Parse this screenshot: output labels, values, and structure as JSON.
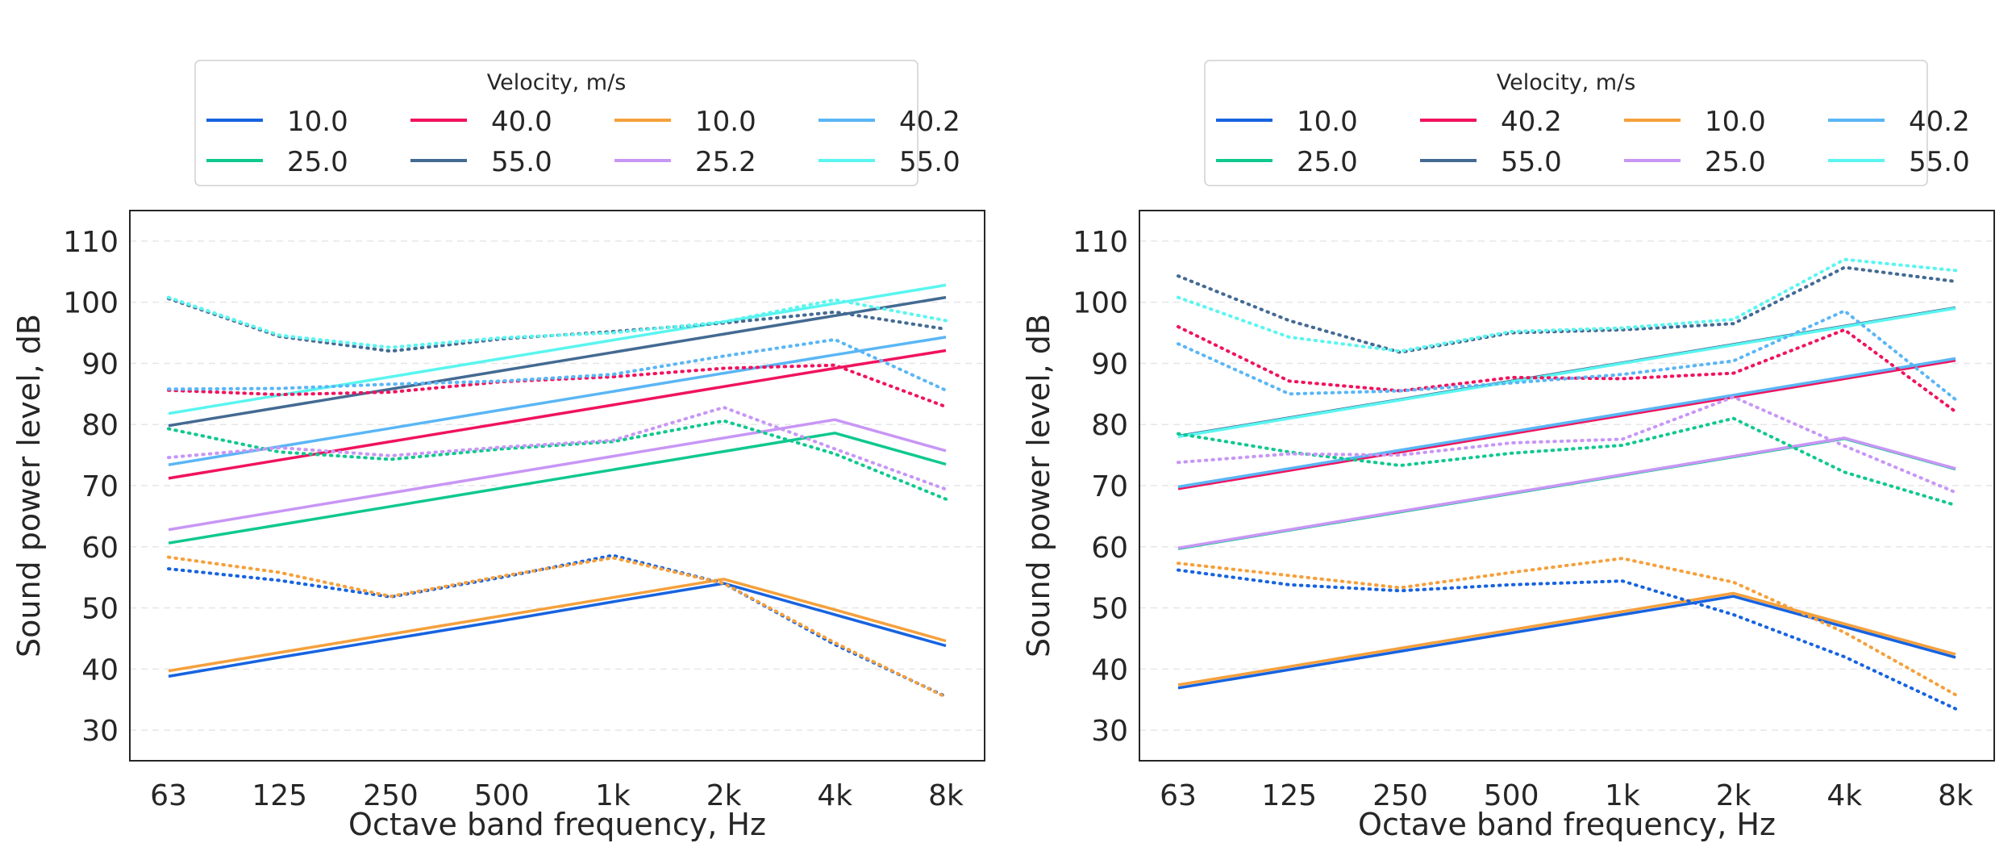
{
  "chart_data": [
    {
      "type": "line",
      "xlabel": "Octave band frequency, Hz",
      "ylabel": "Sound power level, dB",
      "x": [
        "63",
        "125",
        "250",
        "500",
        "1k",
        "2k",
        "4k",
        "8k"
      ],
      "y_ticks": [
        30,
        40,
        50,
        60,
        70,
        80,
        90,
        100,
        110
      ],
      "ylim": [
        25,
        115
      ],
      "grid": "horizontal dashed",
      "legend": {
        "title": "Velocity, m/s",
        "placement": "top-center, outside",
        "columns": 4,
        "entries": [
          "10.0",
          "25.0",
          "40.0",
          "55.0",
          "10.0",
          "25.2",
          "40.2",
          "55.0"
        ]
      },
      "series": [
        {
          "name": "10.0",
          "color": "#1763e0",
          "style": "solid",
          "values": [
            38.8,
            41.9,
            44.9,
            47.9,
            51.0,
            54.0,
            48.9,
            43.8
          ]
        },
        {
          "name": "25.0",
          "color": "#10c88f",
          "style": "solid",
          "values": [
            60.6,
            63.6,
            66.6,
            69.6,
            72.6,
            75.6,
            78.6,
            73.5
          ]
        },
        {
          "name": "40.0",
          "color": "#f0135f",
          "style": "solid",
          "values": [
            71.2,
            74.2,
            77.2,
            80.2,
            83.2,
            86.2,
            89.2,
            92.1
          ]
        },
        {
          "name": "55.0",
          "color": "#436a92",
          "style": "solid",
          "values": [
            79.8,
            82.8,
            85.8,
            88.8,
            91.8,
            94.8,
            97.8,
            100.8
          ]
        },
        {
          "name": "10.0",
          "color": "#f5a03c",
          "style": "solid",
          "values": [
            39.7,
            42.7,
            45.7,
            48.7,
            51.7,
            54.7,
            49.7,
            44.6
          ]
        },
        {
          "name": "25.2",
          "color": "#c896f5",
          "style": "solid",
          "values": [
            62.8,
            65.8,
            68.8,
            71.8,
            74.8,
            77.8,
            80.8,
            75.7
          ]
        },
        {
          "name": "40.2",
          "color": "#5ab6f5",
          "style": "solid",
          "values": [
            73.4,
            76.4,
            79.4,
            82.4,
            85.4,
            88.4,
            91.4,
            94.3
          ]
        },
        {
          "name": "55.0",
          "color": "#5af5f0",
          "style": "solid",
          "values": [
            81.8,
            84.8,
            87.8,
            90.8,
            93.8,
            96.8,
            99.8,
            102.8
          ]
        },
        {
          "color": "#1763e0",
          "style": "dotted",
          "values": [
            56.4,
            54.5,
            51.8,
            55.0,
            58.6,
            54.0,
            44.0,
            35.5
          ]
        },
        {
          "color": "#10c88f",
          "style": "dotted",
          "values": [
            79.3,
            75.5,
            74.3,
            76.0,
            77.2,
            80.6,
            75.2,
            67.8
          ]
        },
        {
          "color": "#f0135f",
          "style": "dotted",
          "values": [
            85.6,
            84.9,
            85.3,
            87.0,
            87.8,
            89.2,
            89.7,
            82.9
          ]
        },
        {
          "color": "#436a92",
          "style": "dotted",
          "values": [
            100.6,
            94.4,
            92.0,
            94.0,
            95.2,
            96.6,
            98.4,
            95.6
          ]
        },
        {
          "color": "#f5a03c",
          "style": "dotted",
          "values": [
            58.3,
            55.8,
            51.9,
            55.2,
            58.2,
            54.0,
            44.3,
            35.4
          ]
        },
        {
          "color": "#c896f5",
          "style": "dotted",
          "values": [
            74.6,
            76.2,
            74.9,
            76.3,
            77.4,
            82.8,
            76.0,
            69.4
          ]
        },
        {
          "color": "#5ab6f5",
          "style": "dotted",
          "values": [
            85.8,
            85.9,
            86.6,
            87.1,
            88.2,
            91.2,
            93.9,
            85.6
          ]
        },
        {
          "color": "#5af5f0",
          "style": "dotted",
          "values": [
            100.8,
            94.6,
            92.6,
            94.2,
            95.0,
            96.8,
            100.4,
            97.0
          ]
        }
      ]
    },
    {
      "type": "line",
      "xlabel": "Octave band frequency, Hz",
      "ylabel": "Sound power level, dB",
      "x": [
        "63",
        "125",
        "250",
        "500",
        "1k",
        "2k",
        "4k",
        "8k"
      ],
      "y_ticks": [
        30,
        40,
        50,
        60,
        70,
        80,
        90,
        100,
        110
      ],
      "ylim": [
        25,
        115
      ],
      "grid": "horizontal dashed",
      "legend": {
        "title": "Velocity, m/s",
        "placement": "top-center, outside",
        "columns": 4,
        "entries": [
          "10.0",
          "25.0",
          "40.2",
          "55.0",
          "10.0",
          "25.0",
          "40.2",
          "55.0"
        ]
      },
      "series": [
        {
          "name": "10.0",
          "color": "#1763e0",
          "style": "solid",
          "values": [
            36.9,
            39.9,
            42.9,
            45.9,
            48.9,
            51.9,
            46.9,
            41.9
          ]
        },
        {
          "name": "25.0",
          "color": "#10c88f",
          "style": "solid",
          "values": [
            59.7,
            62.7,
            65.7,
            68.7,
            71.7,
            74.7,
            77.7,
            72.7
          ]
        },
        {
          "name": "40.2",
          "color": "#f0135f",
          "style": "solid",
          "values": [
            69.5,
            72.5,
            75.5,
            78.5,
            81.5,
            84.5,
            87.5,
            90.5
          ]
        },
        {
          "name": "55.0",
          "color": "#436a92",
          "style": "solid",
          "values": [
            78.1,
            81.1,
            84.1,
            87.1,
            90.1,
            93.1,
            96.1,
            99.1
          ]
        },
        {
          "name": "10.0",
          "color": "#f5a03c",
          "style": "solid",
          "values": [
            37.4,
            40.4,
            43.4,
            46.4,
            49.4,
            52.4,
            47.4,
            42.4
          ]
        },
        {
          "name": "25.0",
          "color": "#c896f5",
          "style": "solid",
          "values": [
            59.8,
            62.8,
            65.8,
            68.8,
            71.8,
            74.8,
            77.8,
            72.8
          ]
        },
        {
          "name": "40.2",
          "color": "#5ab6f5",
          "style": "solid",
          "values": [
            69.8,
            72.8,
            75.8,
            78.8,
            81.8,
            84.8,
            87.8,
            90.8
          ]
        },
        {
          "name": "55.0",
          "color": "#5af5f0",
          "style": "solid",
          "values": [
            78.0,
            81.0,
            84.0,
            87.0,
            90.0,
            93.0,
            96.0,
            99.0
          ]
        },
        {
          "color": "#1763e0",
          "style": "dotted",
          "values": [
            56.2,
            53.8,
            52.8,
            53.8,
            54.4,
            48.9,
            42.0,
            33.5
          ]
        },
        {
          "color": "#10c88f",
          "style": "dotted",
          "values": [
            78.5,
            75.5,
            73.3,
            75.3,
            76.6,
            81.0,
            72.2,
            66.8
          ]
        },
        {
          "color": "#f0135f",
          "style": "dotted",
          "values": [
            96.0,
            87.1,
            85.5,
            87.7,
            87.5,
            88.4,
            95.5,
            82.1
          ]
        },
        {
          "color": "#436a92",
          "style": "dotted",
          "values": [
            104.3,
            97.0,
            91.8,
            95.0,
            95.5,
            96.5,
            105.7,
            103.4
          ]
        },
        {
          "color": "#f5a03c",
          "style": "dotted",
          "values": [
            57.3,
            55.3,
            53.3,
            55.8,
            58.1,
            54.2,
            46.0,
            35.8
          ]
        },
        {
          "color": "#c896f5",
          "style": "dotted",
          "values": [
            73.8,
            75.2,
            75.0,
            77.0,
            77.6,
            84.5,
            76.5,
            68.9
          ]
        },
        {
          "color": "#5ab6f5",
          "style": "dotted",
          "values": [
            93.2,
            85.0,
            85.5,
            86.8,
            88.2,
            90.4,
            98.6,
            84.1
          ]
        },
        {
          "color": "#5af5f0",
          "style": "dotted",
          "values": [
            100.8,
            94.3,
            92.0,
            95.2,
            95.8,
            97.2,
            107.0,
            105.2
          ]
        }
      ]
    }
  ]
}
